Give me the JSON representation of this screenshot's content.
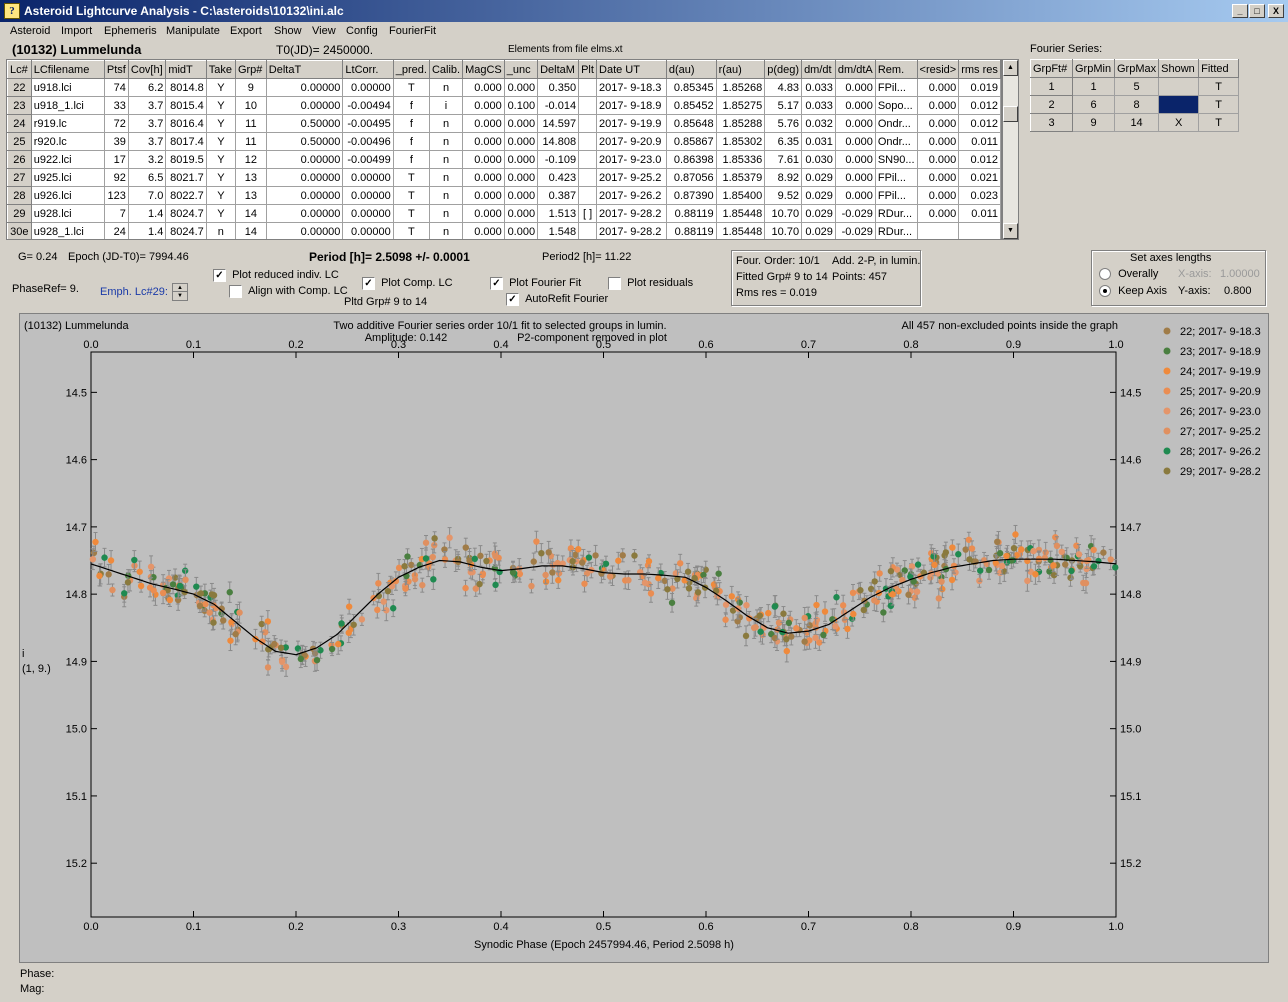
{
  "window": {
    "title": "Asteroid Lightcurve Analysis - C:\\asteroids\\10132\\ini.alc",
    "icon_glyph": "?",
    "controls": [
      "_",
      "□",
      "X"
    ]
  },
  "menu": [
    "Asteroid",
    "Import",
    "Ephemeris",
    "Manipulate",
    "Export",
    "Show",
    "View",
    "Config",
    "FourierFit"
  ],
  "header": {
    "asteroid": "(10132) Lummelunda",
    "t0": "T0(JD)= 2450000.",
    "elements": "Elements from file elms.xt",
    "fourier_title": "Fourier Series:"
  },
  "lc_table": {
    "columns": [
      "Lc#",
      "LCfilename",
      "Ptsf",
      "Cov[h]",
      "midT",
      "Take",
      "Grp#",
      "DeltaT",
      "LtCorr.",
      "_pred.",
      "Calib.",
      "MagCS",
      "_unc",
      "DeltaM",
      "Plt",
      "Date UT",
      "d(au)",
      "r(au)",
      "p(deg)",
      "dm/dt",
      "dm/dtA",
      "Rem.",
      "<resid>",
      "rms res"
    ],
    "rows": [
      [
        "22",
        "u918.lci",
        "74",
        "6.2",
        "8014.8",
        "Y",
        "9",
        "0.00000",
        "0.00000",
        "T",
        "n",
        "0.000",
        "0.000",
        "0.350",
        "",
        "2017- 9-18.3",
        "0.85345",
        "1.85268",
        "4.83",
        "0.033",
        "0.000",
        "FPil...",
        "0.000",
        "0.019"
      ],
      [
        "23",
        "u918_1.lci",
        "33",
        "3.7",
        "8015.4",
        "Y",
        "10",
        "0.00000",
        "-0.00494",
        "f",
        "i",
        "0.000",
        "0.100",
        "-0.014",
        "",
        "2017- 9-18.9",
        "0.85452",
        "1.85275",
        "5.17",
        "0.033",
        "0.000",
        "Sopo...",
        "0.000",
        "0.012"
      ],
      [
        "24",
        "r919.lc",
        "72",
        "3.7",
        "8016.4",
        "Y",
        "11",
        "0.50000",
        "-0.00495",
        "f",
        "n",
        "0.000",
        "0.000",
        "14.597",
        "",
        "2017- 9-19.9",
        "0.85648",
        "1.85288",
        "5.76",
        "0.032",
        "0.000",
        "Ondr...",
        "0.000",
        "0.012"
      ],
      [
        "25",
        "r920.lc",
        "39",
        "3.7",
        "8017.4",
        "Y",
        "11",
        "0.50000",
        "-0.00496",
        "f",
        "n",
        "0.000",
        "0.000",
        "14.808",
        "",
        "2017- 9-20.9",
        "0.85867",
        "1.85302",
        "6.35",
        "0.031",
        "0.000",
        "Ondr...",
        "0.000",
        "0.011"
      ],
      [
        "26",
        "u922.lci",
        "17",
        "3.2",
        "8019.5",
        "Y",
        "12",
        "0.00000",
        "-0.00499",
        "f",
        "n",
        "0.000",
        "0.000",
        "-0.109",
        "",
        "2017- 9-23.0",
        "0.86398",
        "1.85336",
        "7.61",
        "0.030",
        "0.000",
        "SN90...",
        "0.000",
        "0.012"
      ],
      [
        "27",
        "u925.lci",
        "92",
        "6.5",
        "8021.7",
        "Y",
        "13",
        "0.00000",
        "0.00000",
        "T",
        "n",
        "0.000",
        "0.000",
        "0.423",
        "",
        "2017- 9-25.2",
        "0.87056",
        "1.85379",
        "8.92",
        "0.029",
        "0.000",
        "FPil...",
        "0.000",
        "0.021"
      ],
      [
        "28",
        "u926.lci",
        "123",
        "7.0",
        "8022.7",
        "Y",
        "13",
        "0.00000",
        "0.00000",
        "T",
        "n",
        "0.000",
        "0.000",
        "0.387",
        "",
        "2017- 9-26.2",
        "0.87390",
        "1.85400",
        "9.52",
        "0.029",
        "0.000",
        "FPil...",
        "0.000",
        "0.023"
      ],
      [
        "29",
        "u928.lci",
        "7",
        "1.4",
        "8024.7",
        "Y",
        "14",
        "0.00000",
        "0.00000",
        "T",
        "n",
        "0.000",
        "0.000",
        "1.513",
        "[ ]",
        "2017- 9-28.2",
        "0.88119",
        "1.85448",
        "10.70",
        "0.029",
        "-0.029",
        "RDur...",
        "0.000",
        "0.011"
      ],
      [
        "30e",
        "u928_1.lci",
        "24",
        "1.4",
        "8024.7",
        "n",
        "14",
        "0.00000",
        "0.00000",
        "T",
        "n",
        "0.000",
        "0.000",
        "1.548",
        "",
        "2017- 9-28.2",
        "0.88119",
        "1.85448",
        "10.70",
        "0.029",
        "-0.029",
        "RDur...",
        "",
        ""
      ]
    ]
  },
  "fourier_table": {
    "columns": [
      "GrpFt#",
      "GrpMin",
      "GrpMax",
      "Shown",
      "Fitted"
    ],
    "rows": [
      [
        "1",
        "1",
        "5",
        "",
        "T"
      ],
      [
        "2",
        "6",
        "8",
        "",
        "T"
      ],
      [
        "3",
        "9",
        "14",
        "X",
        "T"
      ]
    ],
    "shown_fill_color": "#0a246a"
  },
  "info": {
    "g": "G= 0.24",
    "epoch": "Epoch (JD-T0)= 7994.46",
    "period": "Period [h]= 2.5098 +/- 0.0001",
    "period2": "Period2 [h]= 11.22",
    "phase_ref": "PhaseRef= 9.",
    "emph_lc": "Emph. Lc#29:",
    "pltd_grp": "Pltd Grp#  9   to   14"
  },
  "options": {
    "plot_reduced": {
      "label": "Plot reduced indiv. LC",
      "checked": true
    },
    "align_comp": {
      "label": "Align with Comp. LC",
      "checked": false
    },
    "plot_comp": {
      "label": "Plot Comp. LC",
      "checked": true
    },
    "plot_fourier": {
      "label": "Plot Fourier Fit",
      "checked": true
    },
    "autorefit": {
      "label": "AutoRefit Fourier",
      "checked": true
    },
    "plot_residuals": {
      "label": "Plot residuals",
      "checked": false
    }
  },
  "fit_box": {
    "order": "Four. Order: 10/1",
    "add": "Add. 2-P, in lumin.",
    "fitted": "Fitted Grp# 9 to 14",
    "points": "Points: 457",
    "rms": "Rms res     = 0.019"
  },
  "axes_box": {
    "title": "Set axes lengths",
    "overally": "Overally",
    "keep": "Keep Axis",
    "xaxis_label": "X-axis:",
    "xaxis_value": "1.00000",
    "yaxis_label": "Y-axis:",
    "yaxis_value": "0.800",
    "selected": "keep"
  },
  "status": {
    "phase": "Phase:",
    "mag": "Mag:"
  },
  "chart_data": {
    "type": "scatter",
    "title_left": "(10132) Lummelunda",
    "title": "Two additive Fourier series order 10/1 fit to selected groups in lumin.",
    "subtitle_amp": "Amplitude: 0.142",
    "subtitle_p2": "P2-component removed in plot",
    "title_right": "All 457 non-excluded points inside the graph",
    "xlabel": "Synodic Phase (Epoch 2457994.46, Period 2.5098 h)",
    "ylabel_line1": "i",
    "ylabel_line2": "(1, 9.)",
    "xlim": [
      0,
      1
    ],
    "ylim": [
      15.28,
      14.44
    ],
    "y_reversed": true,
    "xticks": [
      "0.0",
      "0.1",
      "0.2",
      "0.3",
      "0.4",
      "0.5",
      "0.6",
      "0.7",
      "0.8",
      "0.9",
      "1.0"
    ],
    "yticks": [
      "14.5",
      "14.6",
      "14.7",
      "14.8",
      "14.9",
      "15.0",
      "15.1",
      "15.2"
    ],
    "series": [
      {
        "name": "22; 2017- 9-18.3",
        "color": "#a07c48"
      },
      {
        "name": "23; 2017- 9-18.9",
        "color": "#4a7f40"
      },
      {
        "name": "24; 2017- 9-19.9",
        "color": "#ef8a3c"
      },
      {
        "name": "25; 2017- 9-20.9",
        "color": "#ea8d52"
      },
      {
        "name": "26; 2017- 9-23.0",
        "color": "#e4956a"
      },
      {
        "name": "27; 2017- 9-25.2",
        "color": "#e09060"
      },
      {
        "name": "28; 2017- 9-26.2",
        "color": "#1f8a50"
      },
      {
        "name": "29; 2017- 9-28.2",
        "color": "#8a7a3e"
      }
    ],
    "fit_curve": {
      "x": [
        0.0,
        0.02,
        0.04,
        0.06,
        0.08,
        0.1,
        0.12,
        0.14,
        0.16,
        0.18,
        0.2,
        0.22,
        0.24,
        0.26,
        0.28,
        0.3,
        0.32,
        0.34,
        0.36,
        0.38,
        0.4,
        0.42,
        0.44,
        0.46,
        0.48,
        0.5,
        0.52,
        0.54,
        0.56,
        0.58,
        0.6,
        0.62,
        0.64,
        0.66,
        0.68,
        0.7,
        0.72,
        0.74,
        0.76,
        0.78,
        0.8,
        0.82,
        0.84,
        0.86,
        0.88,
        0.9,
        0.92,
        0.94,
        0.96,
        0.98,
        1.0
      ],
      "y": [
        14.755,
        14.765,
        14.775,
        14.785,
        14.792,
        14.8,
        14.815,
        14.84,
        14.865,
        14.885,
        14.89,
        14.88,
        14.86,
        14.83,
        14.8,
        14.775,
        14.76,
        14.75,
        14.752,
        14.76,
        14.765,
        14.762,
        14.758,
        14.758,
        14.762,
        14.768,
        14.77,
        14.77,
        14.772,
        14.775,
        14.79,
        14.81,
        14.832,
        14.85,
        14.858,
        14.855,
        14.845,
        14.825,
        14.805,
        14.79,
        14.778,
        14.768,
        14.76,
        14.755,
        14.75,
        14.748,
        14.748,
        14.748,
        14.75,
        14.752,
        14.755
      ]
    },
    "points_note": "Approx. 457 observations with error bars scattered ~0.02-0.03 mag around the fit curve"
  }
}
